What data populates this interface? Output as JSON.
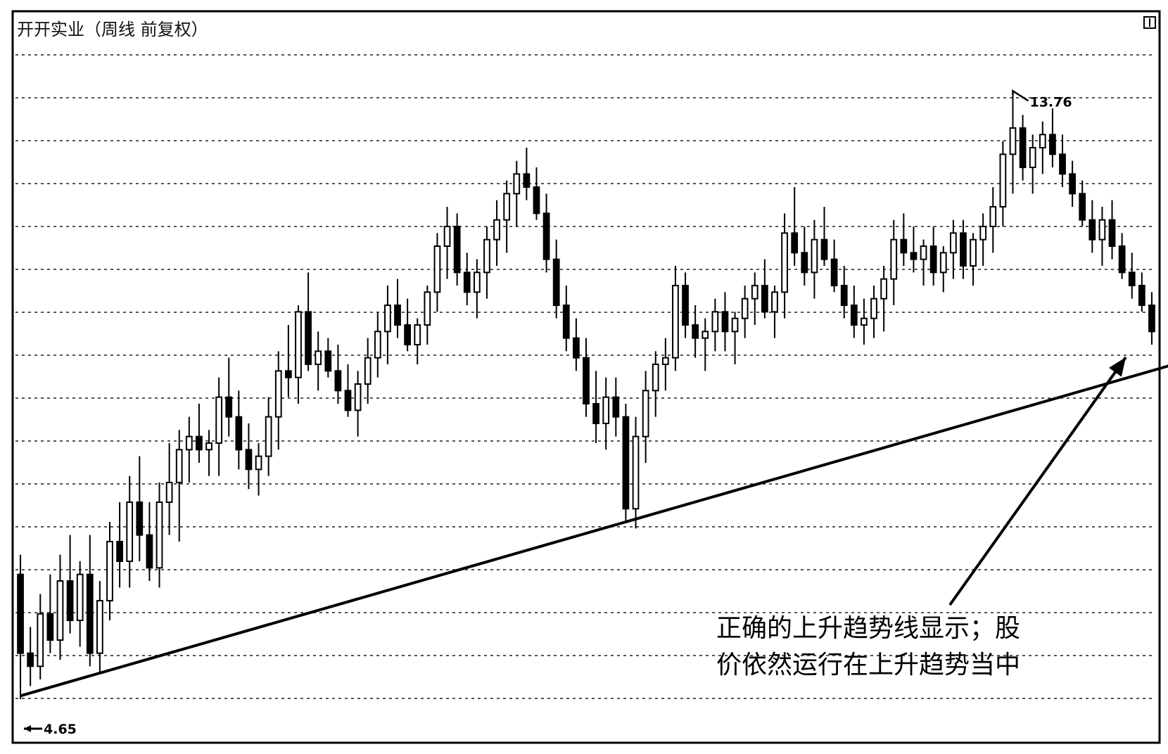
{
  "chart_data": {
    "type": "candlestick",
    "title": "开开实业（周线 前复权）",
    "periodicity": "weekly",
    "grid": true,
    "grid_style": "dotted-horizontal",
    "colors": {
      "candle": "#000000",
      "trendline": "#000000",
      "grid": "#555555",
      "border": "#000000"
    },
    "low_label": "4.65",
    "high_label": "13.76",
    "ylim": [
      4.0,
      14.5
    ],
    "candles": [
      [
        6.5,
        4.6,
        6.8,
        5.3
      ],
      [
        5.3,
        4.8,
        5.7,
        5.1
      ],
      [
        5.1,
        4.9,
        6.2,
        5.9
      ],
      [
        5.9,
        5.3,
        6.5,
        5.5
      ],
      [
        5.5,
        5.2,
        6.8,
        6.4
      ],
      [
        6.4,
        5.6,
        7.1,
        5.8
      ],
      [
        5.8,
        5.4,
        6.7,
        6.5
      ],
      [
        6.5,
        5.1,
        7.1,
        5.3
      ],
      [
        5.3,
        5.0,
        6.4,
        6.1
      ],
      [
        6.1,
        5.8,
        7.3,
        7.0
      ],
      [
        7.0,
        6.3,
        7.6,
        6.7
      ],
      [
        6.7,
        6.3,
        8.0,
        7.6
      ],
      [
        7.6,
        6.7,
        8.3,
        7.1
      ],
      [
        7.1,
        6.4,
        7.6,
        6.6
      ],
      [
        6.6,
        6.3,
        7.9,
        7.6
      ],
      [
        7.6,
        7.1,
        8.5,
        7.9
      ],
      [
        7.9,
        7.0,
        8.7,
        8.4
      ],
      [
        8.4,
        7.9,
        8.9,
        8.6
      ],
      [
        8.6,
        8.2,
        9.1,
        8.4
      ],
      [
        8.4,
        8.0,
        8.7,
        8.5
      ],
      [
        8.5,
        8.0,
        9.5,
        9.2
      ],
      [
        9.2,
        8.6,
        9.8,
        8.9
      ],
      [
        8.9,
        8.1,
        9.3,
        8.4
      ],
      [
        8.4,
        7.8,
        8.8,
        8.1
      ],
      [
        8.1,
        7.7,
        8.5,
        8.3
      ],
      [
        8.3,
        8.0,
        9.2,
        8.9
      ],
      [
        8.9,
        8.4,
        9.9,
        9.6
      ],
      [
        9.6,
        9.2,
        10.3,
        9.5
      ],
      [
        9.5,
        9.1,
        10.6,
        10.5
      ],
      [
        10.5,
        9.6,
        11.1,
        9.7
      ],
      [
        9.7,
        9.3,
        10.2,
        9.9
      ],
      [
        9.9,
        9.5,
        10.1,
        9.6
      ],
      [
        9.6,
        9.1,
        10.0,
        9.3
      ],
      [
        9.3,
        8.9,
        9.7,
        9.0
      ],
      [
        9.0,
        8.6,
        9.6,
        9.4
      ],
      [
        9.4,
        9.1,
        10.1,
        9.8
      ],
      [
        9.8,
        9.5,
        10.5,
        10.2
      ],
      [
        10.2,
        9.7,
        10.9,
        10.6
      ],
      [
        10.6,
        10.1,
        11.0,
        10.3
      ],
      [
        10.3,
        9.9,
        10.7,
        10.0
      ],
      [
        10.0,
        9.7,
        10.4,
        10.3
      ],
      [
        10.3,
        10.0,
        10.9,
        10.8
      ],
      [
        10.8,
        10.5,
        11.7,
        11.5
      ],
      [
        11.5,
        11.0,
        12.1,
        11.8
      ],
      [
        11.8,
        10.9,
        12.0,
        11.1
      ],
      [
        11.1,
        10.6,
        11.4,
        10.8
      ],
      [
        10.8,
        10.4,
        11.3,
        11.1
      ],
      [
        11.1,
        10.7,
        11.8,
        11.6
      ],
      [
        11.6,
        11.2,
        12.2,
        11.9
      ],
      [
        11.9,
        11.4,
        12.5,
        12.3
      ],
      [
        12.3,
        11.8,
        12.8,
        12.6
      ],
      [
        12.6,
        12.2,
        13.0,
        12.4
      ],
      [
        12.4,
        11.9,
        12.7,
        12.0
      ],
      [
        12.0,
        11.1,
        12.3,
        11.3
      ],
      [
        11.3,
        10.4,
        11.6,
        10.6
      ],
      [
        10.6,
        9.9,
        10.9,
        10.1
      ],
      [
        10.1,
        9.6,
        10.4,
        9.8
      ],
      [
        9.8,
        8.9,
        10.1,
        9.1
      ],
      [
        9.1,
        8.5,
        9.6,
        8.8
      ],
      [
        8.8,
        8.4,
        9.5,
        9.2
      ],
      [
        9.2,
        8.6,
        9.5,
        8.9
      ],
      [
        8.9,
        7.3,
        9.1,
        7.5
      ],
      [
        7.5,
        7.2,
        8.9,
        8.6
      ],
      [
        8.6,
        8.2,
        9.6,
        9.3
      ],
      [
        9.3,
        8.9,
        9.9,
        9.7
      ],
      [
        9.7,
        9.3,
        10.1,
        9.8
      ],
      [
        9.8,
        9.6,
        11.2,
        10.9
      ],
      [
        10.9,
        10.1,
        11.1,
        10.3
      ],
      [
        10.3,
        9.8,
        10.6,
        10.1
      ],
      [
        10.1,
        9.6,
        10.4,
        10.2
      ],
      [
        10.2,
        9.9,
        10.7,
        10.5
      ],
      [
        10.5,
        9.9,
        10.8,
        10.2
      ],
      [
        10.2,
        9.7,
        10.5,
        10.4
      ],
      [
        10.4,
        10.1,
        10.9,
        10.7
      ],
      [
        10.7,
        10.3,
        11.1,
        10.9
      ],
      [
        10.9,
        10.4,
        11.3,
        10.5
      ],
      [
        10.5,
        10.1,
        10.9,
        10.8
      ],
      [
        10.8,
        10.4,
        12.0,
        11.7
      ],
      [
        11.7,
        11.2,
        12.4,
        11.4
      ],
      [
        11.4,
        10.9,
        11.8,
        11.1
      ],
      [
        11.1,
        10.7,
        11.9,
        11.6
      ],
      [
        11.6,
        11.2,
        12.1,
        11.3
      ],
      [
        11.3,
        10.8,
        11.6,
        10.9
      ],
      [
        10.9,
        10.4,
        11.2,
        10.6
      ],
      [
        10.6,
        10.1,
        10.9,
        10.3
      ],
      [
        10.3,
        10.0,
        10.7,
        10.4
      ],
      [
        10.4,
        10.1,
        10.9,
        10.7
      ],
      [
        10.7,
        10.2,
        11.2,
        11.0
      ],
      [
        11.0,
        10.6,
        11.9,
        11.6
      ],
      [
        11.6,
        11.2,
        12.0,
        11.4
      ],
      [
        11.4,
        11.1,
        11.8,
        11.3
      ],
      [
        11.3,
        10.9,
        11.6,
        11.5
      ],
      [
        11.5,
        10.9,
        11.8,
        11.1
      ],
      [
        11.1,
        10.8,
        11.5,
        11.4
      ],
      [
        11.4,
        11.0,
        11.9,
        11.7
      ],
      [
        11.7,
        11.0,
        11.9,
        11.2
      ],
      [
        11.2,
        10.9,
        11.7,
        11.6
      ],
      [
        11.6,
        11.2,
        12.0,
        11.8
      ],
      [
        11.8,
        11.4,
        12.4,
        12.1
      ],
      [
        12.1,
        11.8,
        13.1,
        12.9
      ],
      [
        12.9,
        12.3,
        13.8,
        13.3
      ],
      [
        13.3,
        12.5,
        13.5,
        12.7
      ],
      [
        12.7,
        12.3,
        13.2,
        13.0
      ],
      [
        13.0,
        12.6,
        13.4,
        13.2
      ],
      [
        13.2,
        12.7,
        13.6,
        12.9
      ],
      [
        12.9,
        12.4,
        13.2,
        12.6
      ],
      [
        12.6,
        12.1,
        12.8,
        12.3
      ],
      [
        12.3,
        11.8,
        12.5,
        11.9
      ],
      [
        11.9,
        11.4,
        12.2,
        11.6
      ],
      [
        11.6,
        11.2,
        12.1,
        11.9
      ],
      [
        11.9,
        11.3,
        12.2,
        11.5
      ],
      [
        11.5,
        11.0,
        11.7,
        11.1
      ],
      [
        11.1,
        10.7,
        11.4,
        10.9
      ],
      [
        10.9,
        10.5,
        11.1,
        10.6
      ],
      [
        10.6,
        10.0,
        10.8,
        10.2
      ]
    ],
    "trendline": {
      "from_index": 0,
      "from_price": 4.65,
      "through_index": 61,
      "through_price": 7.3,
      "to_index": 119
    },
    "annotation": {
      "line1": "正确的上升趋势线显示；股",
      "line2": "价依然运行在上升趋势当中"
    }
  }
}
